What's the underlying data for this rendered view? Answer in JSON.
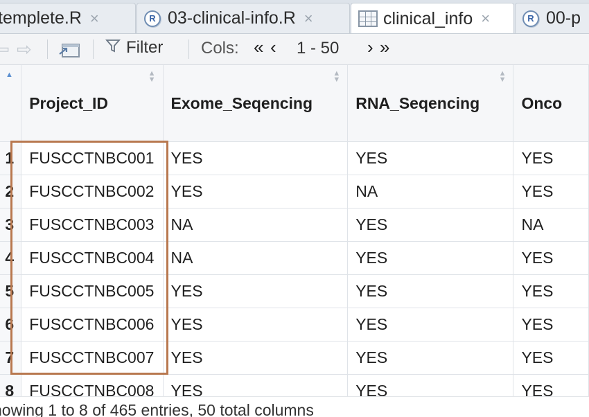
{
  "tabs": [
    {
      "label": "templete.R",
      "type": "r-script",
      "active": false,
      "close": "×"
    },
    {
      "label": "03-clinical-info.R",
      "type": "r-script",
      "active": false,
      "close": "×"
    },
    {
      "label": "clinical_info",
      "type": "data-view",
      "active": true,
      "close": "×"
    },
    {
      "label": "00-p",
      "type": "r-script",
      "active": false
    }
  ],
  "toolbar": {
    "back": "⇦",
    "forward": "⇨",
    "filter_label": "Filter",
    "cols_label": "Cols:",
    "first_label": "«",
    "prev_label": "‹",
    "range": "1 - 50",
    "next_label": "›",
    "last_label": "»"
  },
  "table": {
    "columns": [
      "Project_ID",
      "Exome_Seqencing",
      "RNA_Seqencing",
      "Onco"
    ],
    "rows": [
      {
        "n": "1",
        "cells": [
          "FUSCCTNBC001",
          "YES",
          "YES",
          "YES"
        ]
      },
      {
        "n": "2",
        "cells": [
          "FUSCCTNBC002",
          "YES",
          "NA",
          "YES"
        ]
      },
      {
        "n": "3",
        "cells": [
          "FUSCCTNBC003",
          "NA",
          "YES",
          "NA"
        ]
      },
      {
        "n": "4",
        "cells": [
          "FUSCCTNBC004",
          "NA",
          "YES",
          "YES"
        ]
      },
      {
        "n": "5",
        "cells": [
          "FUSCCTNBC005",
          "YES",
          "YES",
          "YES"
        ]
      },
      {
        "n": "6",
        "cells": [
          "FUSCCTNBC006",
          "YES",
          "YES",
          "YES"
        ]
      },
      {
        "n": "7",
        "cells": [
          "FUSCCTNBC007",
          "YES",
          "YES",
          "YES"
        ]
      },
      {
        "n": "8",
        "cells": [
          "FUSCCTNBC008",
          "YES",
          "YES",
          "YES"
        ]
      }
    ]
  },
  "status": "howing 1 to 8 of 465 entries, 50 total columns",
  "colors": {
    "highlight_box": "#b8784f",
    "sort_active": "#5b8fd0"
  }
}
